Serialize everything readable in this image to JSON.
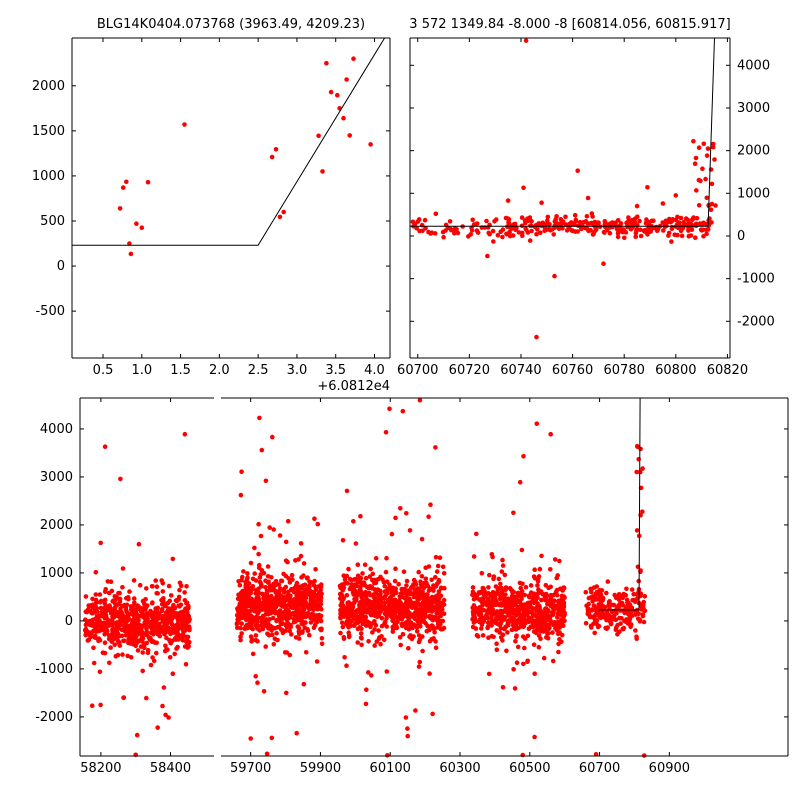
{
  "colors": {
    "background": "#ffffff",
    "marker": "#ff0000",
    "line": "#000000",
    "text": "#000000"
  },
  "chart_data": [
    {
      "id": "zoom-left",
      "type": "scatter",
      "title": "BLG14K0404.073768 (3963.49, 4209.23)",
      "x_offset_label": "+6.0812e4",
      "xlim": [
        0.1,
        4.2
      ],
      "ylim": [
        -1020,
        2530
      ],
      "xticks": [
        0.5,
        1.0,
        1.5,
        2.0,
        2.5,
        3.0,
        3.5,
        4.0
      ],
      "xtick_labels": [
        "0.5",
        "1.0",
        "1.5",
        "2.0",
        "2.5",
        "3.0",
        "3.5",
        "4.0"
      ],
      "yticks": [
        -500,
        0,
        500,
        1000,
        1500,
        2000
      ],
      "ytick_labels": [
        "-500",
        "0",
        "500",
        "1000",
        "1500",
        "2000"
      ],
      "points": [
        [
          0.72,
          640
        ],
        [
          0.76,
          870
        ],
        [
          0.8,
          935
        ],
        [
          0.84,
          250
        ],
        [
          0.86,
          135
        ],
        [
          0.93,
          470
        ],
        [
          1.0,
          425
        ],
        [
          1.08,
          930
        ],
        [
          1.55,
          1570
        ],
        [
          2.68,
          1210
        ],
        [
          2.73,
          1295
        ],
        [
          2.78,
          545
        ],
        [
          2.83,
          600
        ],
        [
          3.28,
          1445
        ],
        [
          3.33,
          1050
        ],
        [
          3.38,
          2250
        ],
        [
          3.44,
          1930
        ],
        [
          3.52,
          1895
        ],
        [
          3.55,
          1750
        ],
        [
          3.6,
          1640
        ],
        [
          3.64,
          2070
        ],
        [
          3.68,
          1450
        ],
        [
          3.73,
          2300
        ],
        [
          3.95,
          1350
        ]
      ],
      "model_line": [
        [
          0.1,
          230
        ],
        [
          2.5,
          230
        ],
        [
          4.13,
          2530
        ]
      ]
    },
    {
      "id": "zoom-right",
      "type": "scatter",
      "title": "3 572 1349.84 -8.000 -8 [60814.056, 60815.917]",
      "xlim": [
        60697,
        60821
      ],
      "ylim": [
        -2860,
        4640
      ],
      "xticks": [
        60700,
        60720,
        60740,
        60760,
        60780,
        60800,
        60820
      ],
      "xtick_labels": [
        "60700",
        "60720",
        "60740",
        "60760",
        "60780",
        "60800",
        "60820"
      ],
      "yticks": [
        -2000,
        -1000,
        0,
        1000,
        2000,
        3000,
        4000
      ],
      "ytick_labels": [
        "-2000",
        "-1000",
        "0",
        "1000",
        "2000",
        "3000",
        "4000"
      ],
      "clusters": [
        {
          "seed": 21,
          "x_range": [
            60698,
            60736
          ],
          "count": 55,
          "dist": "gauss",
          "y_center": 210,
          "y_sigma": 140
        },
        {
          "seed": 22,
          "x_range": [
            60734,
            60813
          ],
          "count": 300,
          "dist": "gauss",
          "y_center": 235,
          "y_sigma": 110
        },
        {
          "seed": 23,
          "x_range": [
            60806,
            60815.5
          ],
          "count": 28,
          "dist": "uniform",
          "y_range": [
            300,
            2250
          ]
        }
      ],
      "points": [
        [
          60742,
          4580
        ],
        [
          60762,
          1530
        ],
        [
          60789,
          1140
        ],
        [
          60741,
          1130
        ],
        [
          60800,
          950
        ],
        [
          60735,
          830
        ],
        [
          60748,
          780
        ],
        [
          60766,
          890
        ],
        [
          60785,
          700
        ],
        [
          60795,
          760
        ],
        [
          60746,
          -2370
        ],
        [
          60753,
          -940
        ],
        [
          60772,
          -650
        ],
        [
          60727,
          -470
        ],
        [
          60707,
          520
        ],
        [
          60703,
          180
        ],
        [
          60711,
          260
        ]
      ],
      "model_line": [
        [
          60697,
          230
        ],
        [
          60812.5,
          230
        ],
        [
          60815,
          4640
        ]
      ]
    },
    {
      "id": "full-lightcurve",
      "type": "scatter",
      "title": "",
      "broken_x": true,
      "segments": [
        {
          "xlim": [
            58140,
            58525
          ],
          "xticks": [
            58200,
            58400
          ],
          "xtick_labels": [
            "58200",
            "58400"
          ]
        },
        {
          "xlim": [
            59615,
            61240
          ],
          "xticks": [
            59700,
            59900,
            60100,
            60300,
            60500,
            60700,
            60900
          ],
          "xtick_labels": [
            "59700",
            "59900",
            "60100",
            "60300",
            "60500",
            "60700",
            "60900"
          ]
        }
      ],
      "ylim": [
        -2815,
        4645
      ],
      "yticks": [
        -2000,
        -1000,
        0,
        1000,
        2000,
        3000,
        4000
      ],
      "ytick_labels": [
        "-2000",
        "-1000",
        "0",
        "1000",
        "2000",
        "3000",
        "4000"
      ],
      "clusters": [
        {
          "seed": 31,
          "x_range": [
            58155,
            58455
          ],
          "count": 650,
          "dist": "gauss",
          "y_center": -20,
          "y_sigma": 300
        },
        {
          "seed": 32,
          "x_range": [
            58165,
            58445
          ],
          "count": 60,
          "dist": "gauss",
          "y_center": 0,
          "y_sigma": 1050
        },
        {
          "seed": 33,
          "x_range": [
            59660,
            59905
          ],
          "count": 650,
          "dist": "gauss",
          "y_center": 300,
          "y_sigma": 300
        },
        {
          "seed": 34,
          "x_range": [
            59668,
            59900
          ],
          "count": 80,
          "dist": "gauss",
          "y_center": 350,
          "y_sigma": 1150
        },
        {
          "seed": 35,
          "x_range": [
            59955,
            60255
          ],
          "count": 680,
          "dist": "gauss",
          "y_center": 290,
          "y_sigma": 320
        },
        {
          "seed": 36,
          "x_range": [
            59960,
            60250
          ],
          "count": 80,
          "dist": "gauss",
          "y_center": 350,
          "y_sigma": 1200
        },
        {
          "seed": 37,
          "x_range": [
            60335,
            60600
          ],
          "count": 560,
          "dist": "gauss",
          "y_center": 210,
          "y_sigma": 280
        },
        {
          "seed": 38,
          "x_range": [
            60340,
            60595
          ],
          "count": 55,
          "dist": "gauss",
          "y_center": 250,
          "y_sigma": 1100
        },
        {
          "seed": 39,
          "x_range": [
            60660,
            60830
          ],
          "count": 230,
          "dist": "gauss",
          "y_center": 250,
          "y_sigma": 230
        },
        {
          "seed": 40,
          "x_range": [
            60806,
            60824
          ],
          "count": 16,
          "dist": "uniform",
          "y_range": [
            400,
            4300
          ]
        }
      ],
      "points": [
        [
          59725,
          4230
        ],
        [
          59762,
          3830
        ],
        [
          59732,
          3560
        ],
        [
          60098,
          4420
        ],
        [
          60136,
          4370
        ],
        [
          60088,
          3930
        ],
        [
          60185,
          4600
        ],
        [
          60520,
          4110
        ],
        [
          60560,
          3890
        ],
        [
          60482,
          3430
        ],
        [
          58212,
          3630
        ],
        [
          58256,
          2960
        ],
        [
          58300,
          -2790
        ],
        [
          59747,
          -2770
        ],
        [
          60092,
          -2800
        ],
        [
          60480,
          -2795
        ],
        [
          60690,
          -2780
        ],
        [
          60828,
          -2805
        ],
        [
          59700,
          -2450
        ],
        [
          60150,
          -2400
        ]
      ],
      "model_line": [
        [
          60697,
          230
        ],
        [
          60813,
          230
        ],
        [
          60816,
          4645
        ]
      ]
    }
  ]
}
